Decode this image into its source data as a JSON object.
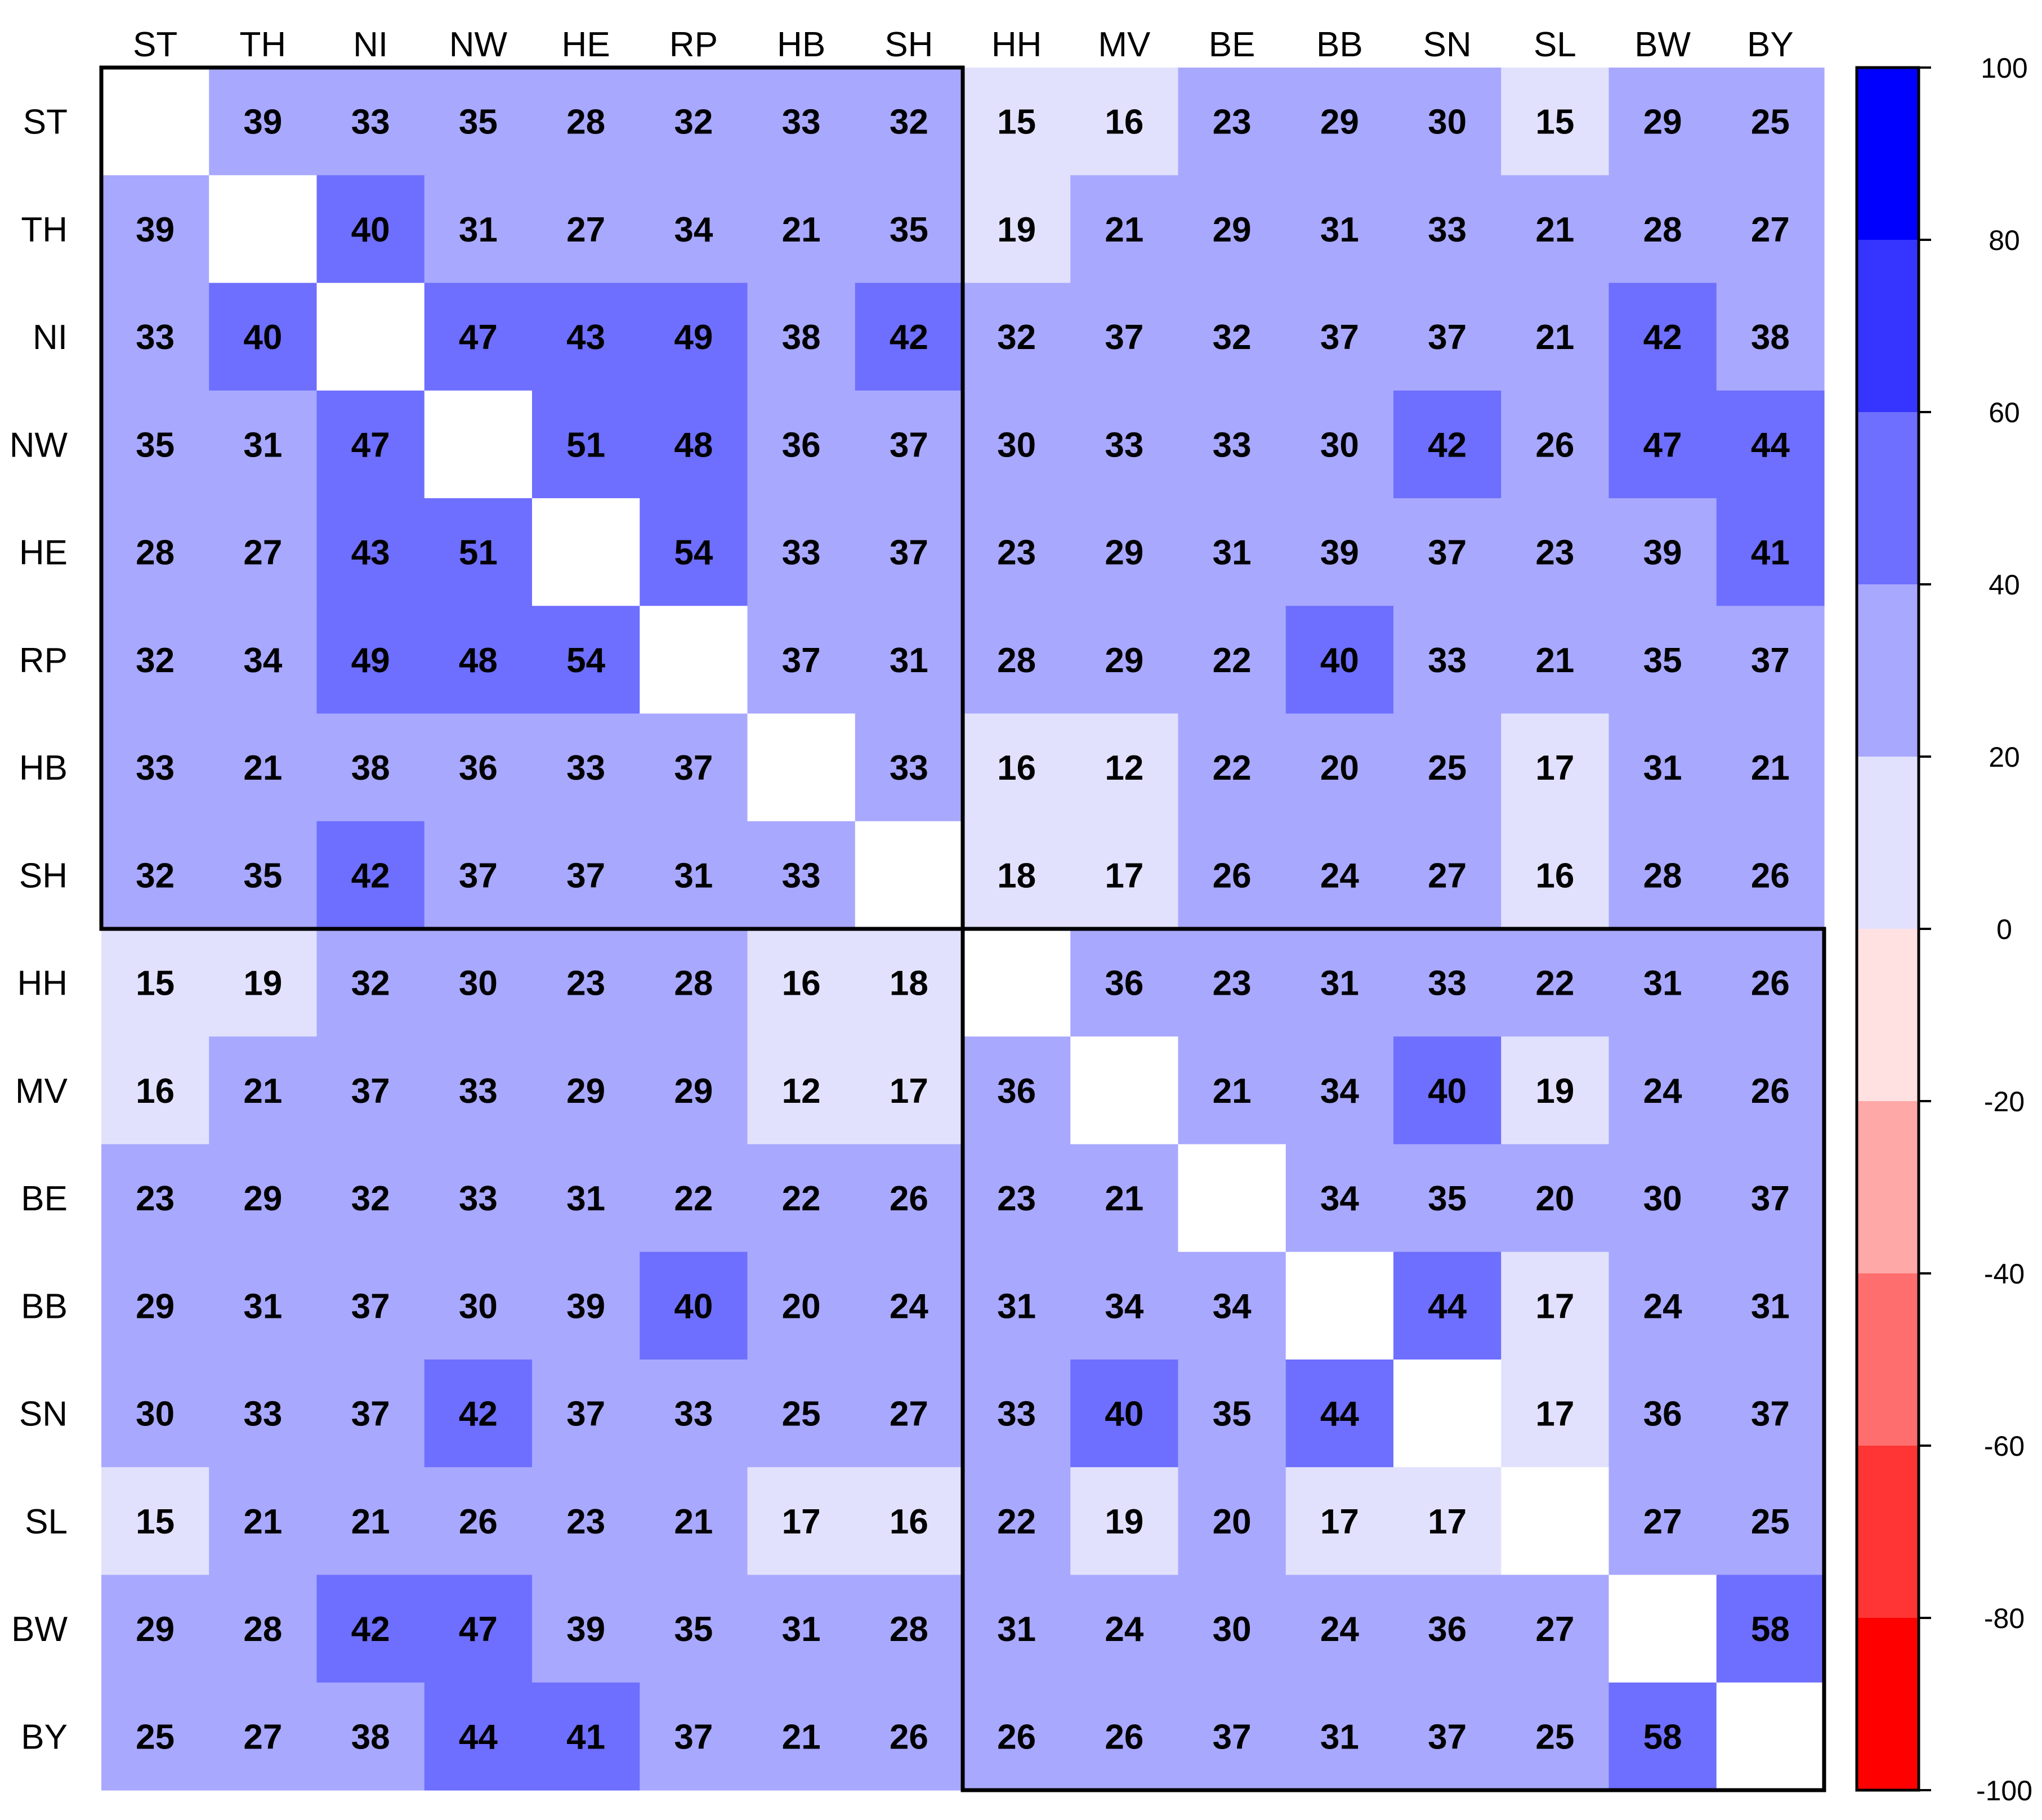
{
  "chart_data": {
    "type": "heatmap",
    "title": "",
    "xlabel": "",
    "ylabel": "",
    "categories": [
      "ST",
      "TH",
      "NI",
      "NW",
      "HE",
      "RP",
      "HB",
      "SH",
      "HH",
      "MV",
      "BE",
      "BB",
      "SN",
      "SL",
      "BW",
      "BY"
    ],
    "matrix": [
      [
        null,
        39,
        33,
        35,
        28,
        32,
        33,
        32,
        15,
        16,
        23,
        29,
        30,
        15,
        29,
        25
      ],
      [
        39,
        null,
        40,
        31,
        27,
        34,
        21,
        35,
        19,
        21,
        29,
        31,
        33,
        21,
        28,
        27
      ],
      [
        33,
        40,
        null,
        47,
        43,
        49,
        38,
        42,
        32,
        37,
        32,
        37,
        37,
        21,
        42,
        38
      ],
      [
        35,
        31,
        47,
        null,
        51,
        48,
        36,
        37,
        30,
        33,
        33,
        30,
        42,
        26,
        47,
        44
      ],
      [
        28,
        27,
        43,
        51,
        null,
        54,
        33,
        37,
        23,
        29,
        31,
        39,
        37,
        23,
        39,
        41
      ],
      [
        32,
        34,
        49,
        48,
        54,
        null,
        37,
        31,
        28,
        29,
        22,
        40,
        33,
        21,
        35,
        37
      ],
      [
        33,
        21,
        38,
        36,
        33,
        37,
        null,
        33,
        16,
        12,
        22,
        20,
        25,
        17,
        31,
        21
      ],
      [
        32,
        35,
        42,
        37,
        37,
        31,
        33,
        null,
        18,
        17,
        26,
        24,
        27,
        16,
        28,
        26
      ],
      [
        15,
        19,
        32,
        30,
        23,
        28,
        16,
        18,
        null,
        36,
        23,
        31,
        33,
        22,
        31,
        26
      ],
      [
        16,
        21,
        37,
        33,
        29,
        29,
        12,
        17,
        36,
        null,
        21,
        34,
        40,
        19,
        24,
        26
      ],
      [
        23,
        29,
        32,
        33,
        31,
        22,
        22,
        26,
        23,
        21,
        null,
        34,
        35,
        20,
        30,
        37
      ],
      [
        29,
        31,
        37,
        30,
        39,
        40,
        20,
        24,
        31,
        34,
        34,
        null,
        44,
        17,
        24,
        31
      ],
      [
        30,
        33,
        37,
        42,
        37,
        33,
        25,
        27,
        33,
        40,
        35,
        44,
        null,
        17,
        36,
        37
      ],
      [
        15,
        21,
        21,
        26,
        23,
        21,
        17,
        16,
        22,
        19,
        20,
        17,
        17,
        null,
        27,
        25
      ],
      [
        29,
        28,
        42,
        47,
        39,
        35,
        31,
        28,
        31,
        24,
        30,
        24,
        36,
        27,
        null,
        58
      ],
      [
        25,
        27,
        38,
        44,
        41,
        37,
        21,
        26,
        26,
        26,
        37,
        31,
        37,
        25,
        58,
        null
      ]
    ],
    "blocks": [
      {
        "rows": [
          0,
          7
        ],
        "cols": [
          0,
          7
        ]
      },
      {
        "rows": [
          8,
          15
        ],
        "cols": [
          8,
          15
        ]
      }
    ],
    "colorbar": {
      "range": [
        -100,
        100
      ],
      "ticks": [
        100,
        80,
        60,
        40,
        20,
        0,
        -20,
        -40,
        -60,
        -80,
        -100
      ],
      "bins": [
        {
          "from": 80,
          "to": 100,
          "color": "#0000ff"
        },
        {
          "from": 60,
          "to": 80,
          "color": "#3535ff"
        },
        {
          "from": 40,
          "to": 60,
          "color": "#6e6eff"
        },
        {
          "from": 20,
          "to": 40,
          "color": "#a8a8ff"
        },
        {
          "from": 0,
          "to": 20,
          "color": "#e1e1fd"
        },
        {
          "from": -20,
          "to": 0,
          "color": "#ffe1e1"
        },
        {
          "from": -40,
          "to": -20,
          "color": "#ffa8a8"
        },
        {
          "from": -60,
          "to": -40,
          "color": "#ff6e6e"
        },
        {
          "from": -80,
          "to": -60,
          "color": "#ff3535"
        },
        {
          "from": -100,
          "to": -80,
          "color": "#ff0000"
        }
      ]
    },
    "diagonal_color": "#ffffff",
    "grid": false,
    "legend": "right"
  }
}
